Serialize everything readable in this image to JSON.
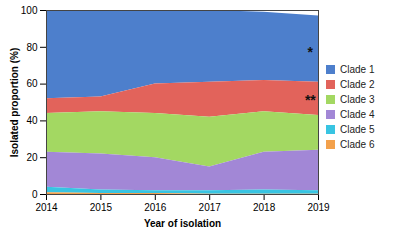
{
  "chart_data": {
    "type": "area",
    "stacked": true,
    "x_label": "Year of isolation",
    "y_label": "Isolated proportion (%)",
    "x": [
      2014,
      2015,
      2016,
      2017,
      2018,
      2019
    ],
    "xlim": [
      2014,
      2019
    ],
    "xticks": [
      2014,
      2015,
      2016,
      2017,
      2018,
      2019
    ],
    "ylim": [
      0,
      100
    ],
    "yticks": [
      0,
      20,
      40,
      60,
      80,
      100
    ],
    "legend": "right",
    "series": [
      {
        "name": "Clade 1",
        "color": "#4d7fcc",
        "values": [
          48,
          47,
          40,
          39,
          37,
          36
        ]
      },
      {
        "name": "Clade 2",
        "color": "#e2635b",
        "values": [
          8,
          8,
          16,
          19,
          17,
          18
        ]
      },
      {
        "name": "Clade 3",
        "color": "#a3d862",
        "values": [
          21,
          23,
          24,
          27,
          22,
          19
        ]
      },
      {
        "name": "Clade 4",
        "color": "#a287d6",
        "values": [
          19,
          19.5,
          18,
          13,
          20.5,
          22
        ]
      },
      {
        "name": "Clade 5",
        "color": "#38c4e2",
        "values": [
          3,
          2,
          1.5,
          1.8,
          2.3,
          1.8
        ]
      },
      {
        "name": "Clade 6",
        "color": "#f3a14c",
        "values": [
          1,
          0.5,
          0.5,
          0.2,
          0.2,
          0.2
        ]
      }
    ],
    "annotations": [
      {
        "text": "*",
        "x": 2018.85,
        "y": 77
      },
      {
        "text": "**",
        "x": 2018.85,
        "y": 51
      }
    ]
  }
}
